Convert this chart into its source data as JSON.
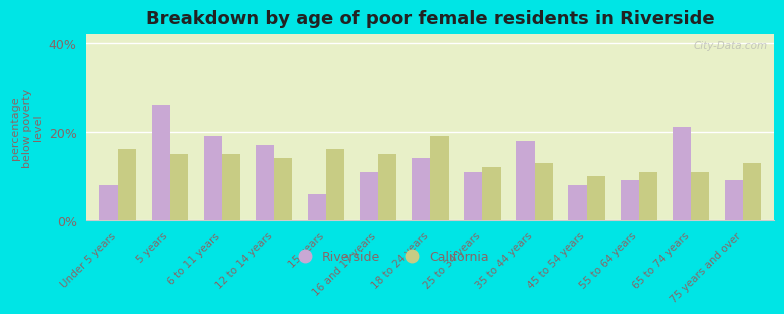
{
  "title": "Breakdown by age of poor female residents in Riverside",
  "ylabel": "percentage\nbelow poverty\nlevel",
  "categories": [
    "Under 5 years",
    "5 years",
    "6 to 11 years",
    "12 to 14 years",
    "15 years",
    "16 and 17 years",
    "18 to 24 years",
    "25 to 34 years",
    "35 to 44 years",
    "45 to 54 years",
    "55 to 64 years",
    "65 to 74 years",
    "75 years and over"
  ],
  "riverside": [
    8,
    26,
    19,
    17,
    6,
    11,
    14,
    11,
    18,
    8,
    9,
    21,
    9
  ],
  "california": [
    16,
    15,
    15,
    14,
    16,
    15,
    19,
    12,
    13,
    10,
    11,
    11,
    13
  ],
  "riverside_color": "#c9a8d4",
  "california_color": "#c8cc84",
  "background_color": "#e8f0c8",
  "outer_background": "#00e5e5",
  "ylim": [
    0,
    42
  ],
  "yticks": [
    0,
    20,
    40
  ],
  "ytick_labels": [
    "0%",
    "20%",
    "40%"
  ],
  "bar_width": 0.35,
  "title_fontsize": 13,
  "legend_labels": [
    "Riverside",
    "California"
  ],
  "label_color": "#886666",
  "watermark": "City-Data.com"
}
